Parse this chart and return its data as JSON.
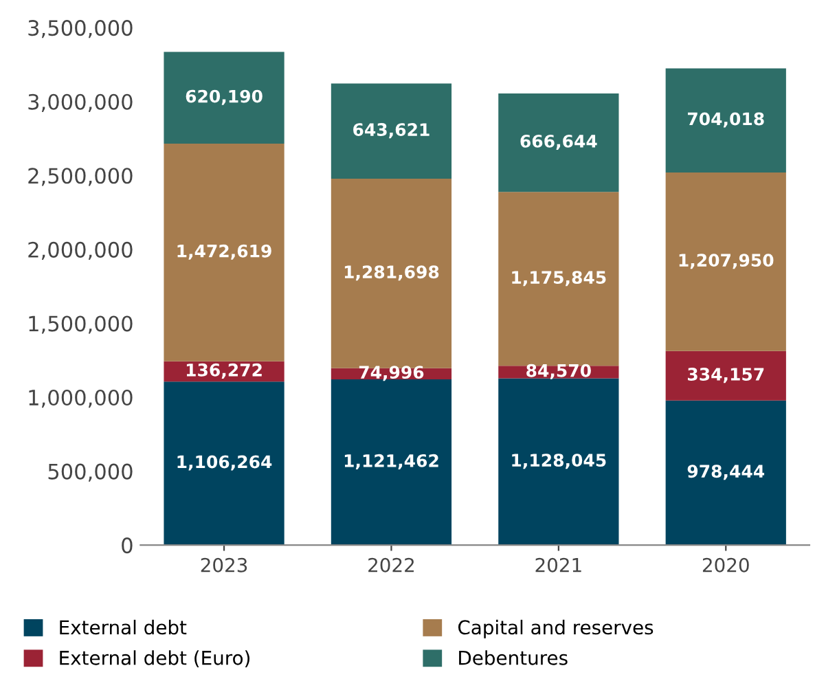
{
  "chart_data": {
    "type": "bar",
    "stacked": true,
    "categories": [
      "2023",
      "2022",
      "2021",
      "2020"
    ],
    "series": [
      {
        "name": "External debt",
        "color": "#00445f",
        "values": [
          1106264,
          1121462,
          1128045,
          978444
        ],
        "value_labels": [
          "1,106,264",
          "1,121,462",
          "1,128,045",
          "978,444"
        ]
      },
      {
        "name": "External debt (Euro)",
        "color": "#9b2335",
        "values": [
          136272,
          74996,
          84570,
          334157
        ],
        "value_labels": [
          "136,272",
          "74,996",
          "84,570",
          "334,157"
        ]
      },
      {
        "name": "Capital and reserves",
        "color": "#a67c4e",
        "values": [
          1472619,
          1281698,
          1175845,
          1207950
        ],
        "value_labels": [
          "1,472,619",
          "1,281,698",
          "1,175,845",
          "1,207,950"
        ]
      },
      {
        "name": "Debentures",
        "color": "#2e6e68",
        "values": [
          620190,
          643621,
          666644,
          704018
        ],
        "value_labels": [
          "620,190",
          "643,621",
          "666,644",
          "704,018"
        ]
      }
    ],
    "ylim": [
      0,
      3500000
    ],
    "yticks": [
      0,
      {
        "value": 500000,
        "label": "500,000"
      },
      {
        "value": 1000000,
        "label": "1,000,000"
      },
      {
        "value": 1500000,
        "label": "1,500,000"
      },
      {
        "value": 2000000,
        "label": "2,000,000"
      },
      {
        "value": 2500000,
        "label": "2,500,000"
      },
      {
        "value": 3000000,
        "label": "3,000,000"
      },
      {
        "value": 3500000,
        "label": "3,500,000"
      }
    ],
    "grid": false,
    "legend": "bottom"
  }
}
